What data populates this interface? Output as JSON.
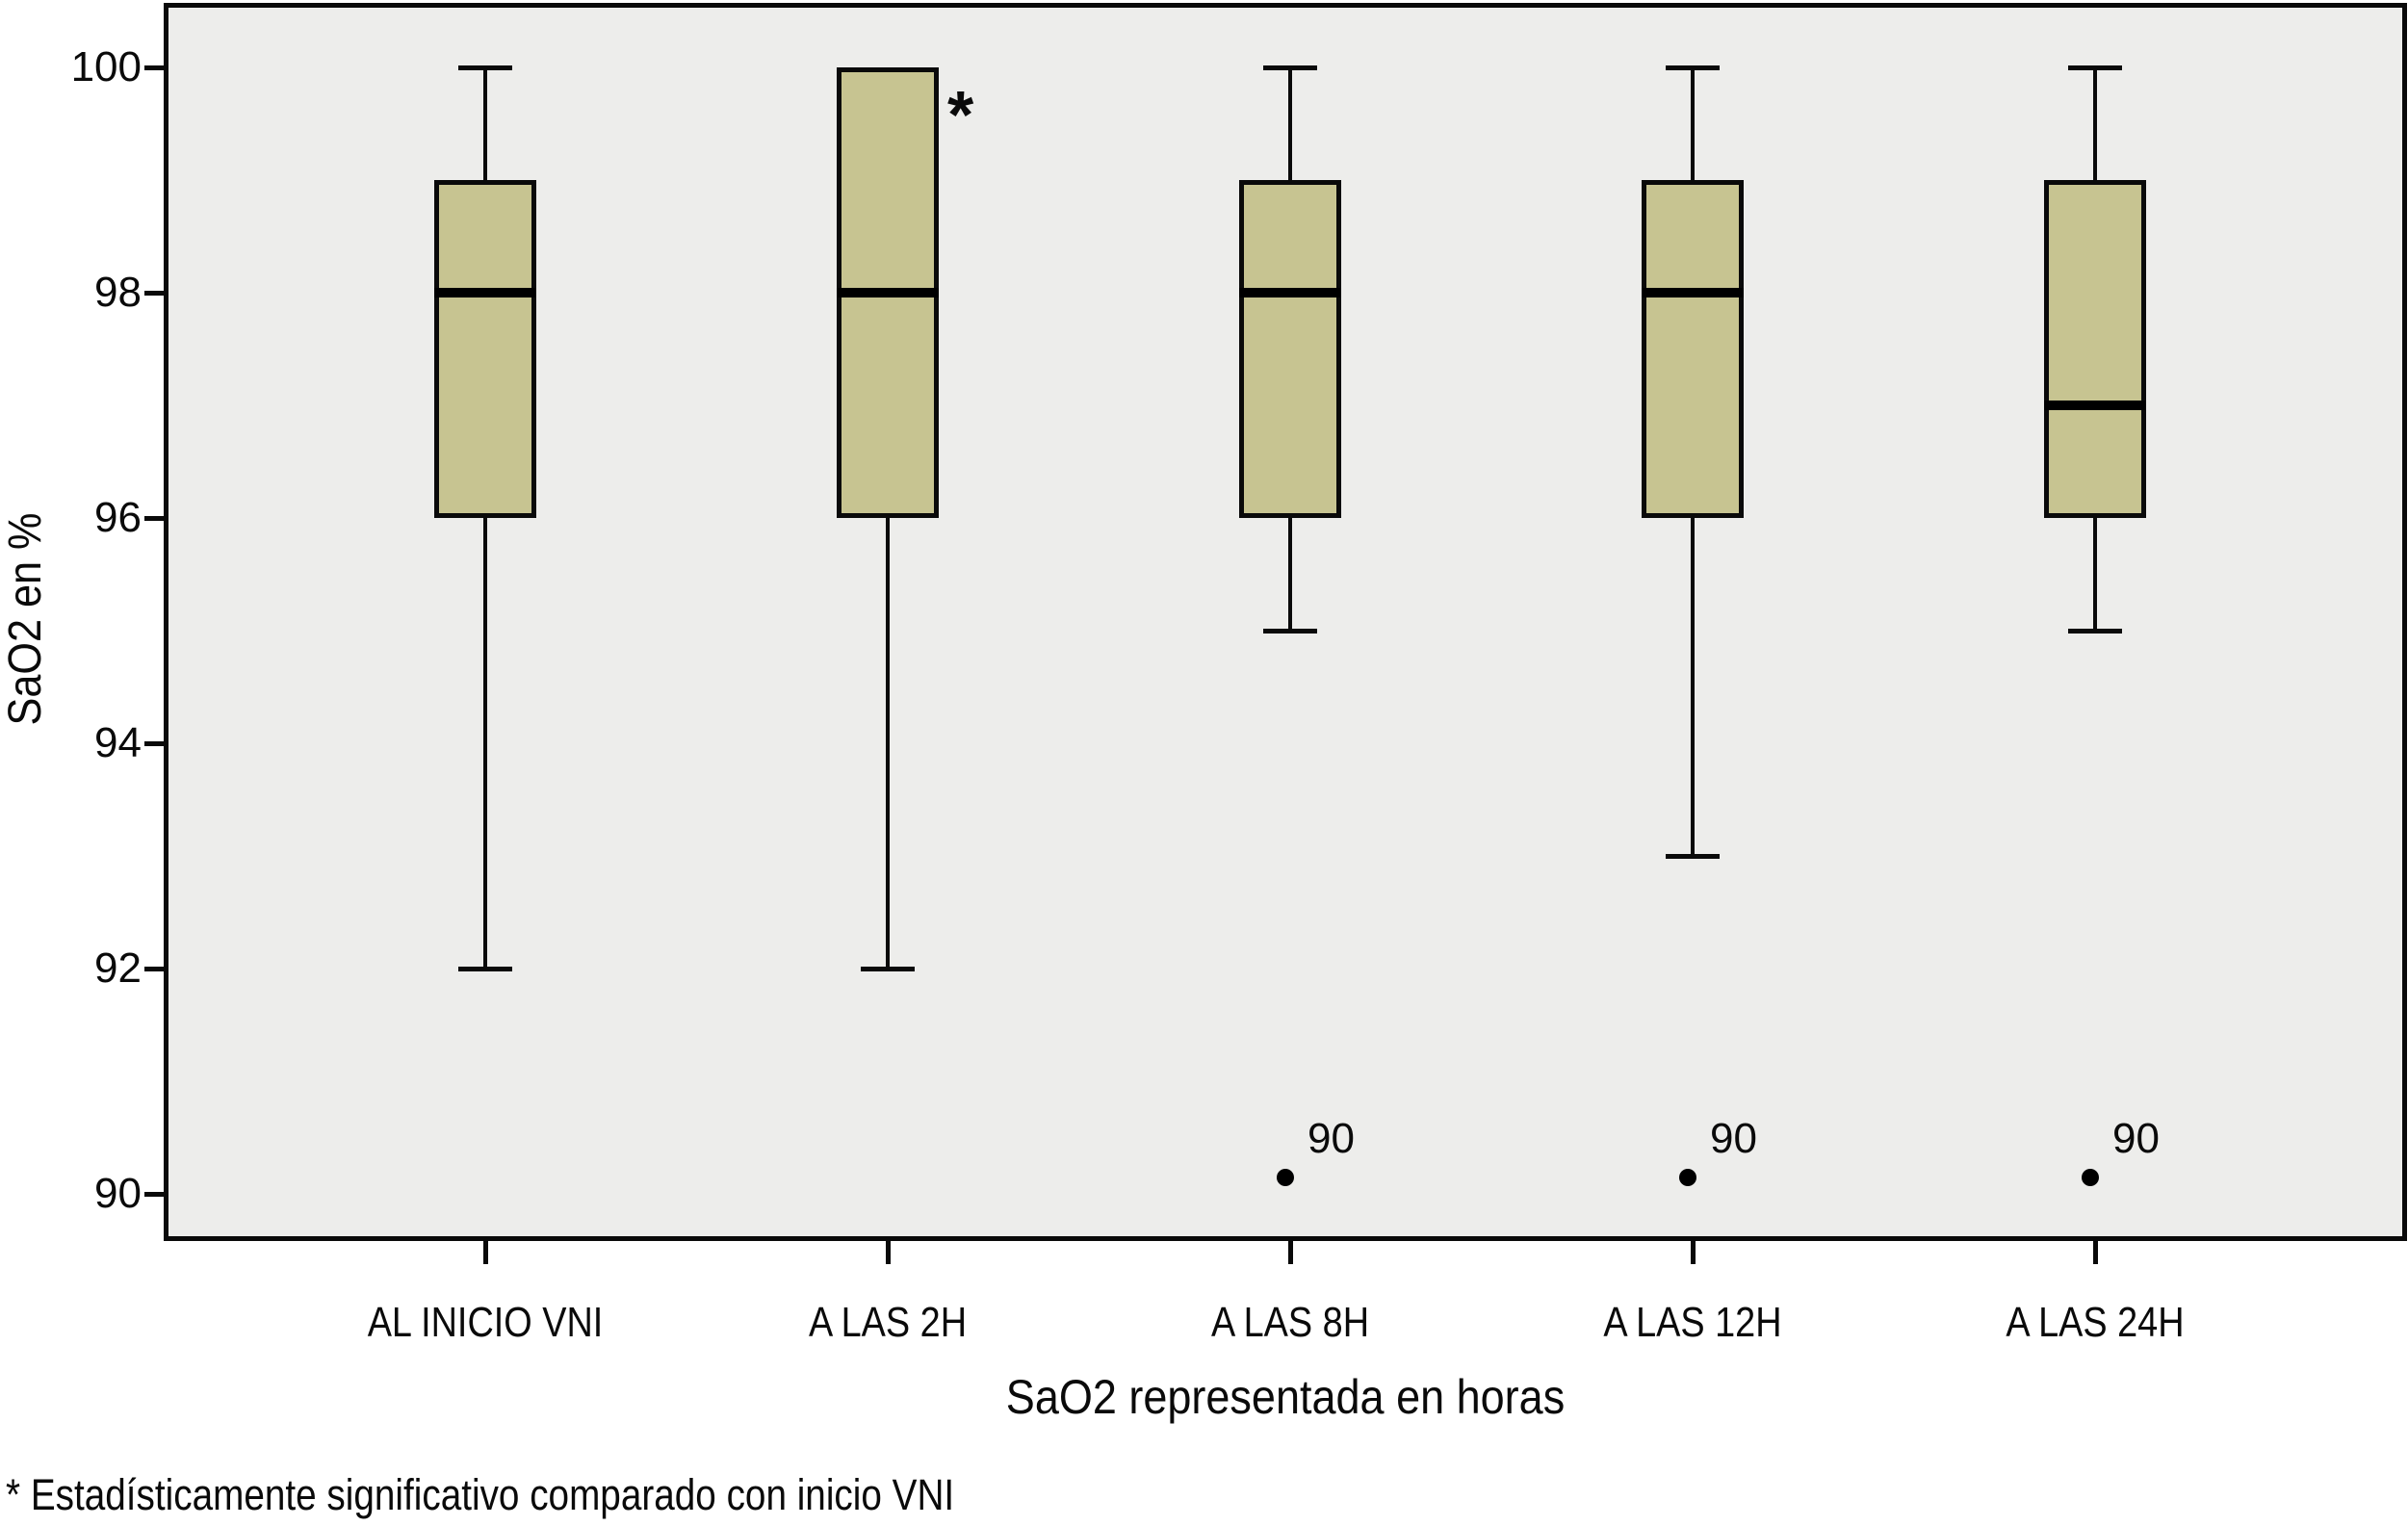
{
  "chart_data": {
    "type": "boxplot",
    "title": "",
    "ylabel": "SaO2 en %",
    "xlabel": "SaO2 representada en horas",
    "footnote": "* Estadísticamente significativo comparado con inicio VNI",
    "y_axis": {
      "ticks": [
        100,
        98,
        96,
        94,
        92,
        90
      ],
      "min": 89.3,
      "max": 100.6
    },
    "categories": [
      "AL INICIO VNI",
      "A LAS 2H",
      "A LAS 8H",
      "A LAS 12H",
      "A LAS 24H"
    ],
    "series": [
      {
        "category": "AL INICIO VNI",
        "whisker_low": 92,
        "q1": 96,
        "median": 98,
        "q3": 99,
        "whisker_high": 100,
        "outliers": []
      },
      {
        "category": "A LAS 2H",
        "whisker_low": 92,
        "q1": 96,
        "median": 98,
        "q3": 100,
        "whisker_high": null,
        "outliers": [],
        "annotation": "*"
      },
      {
        "category": "A LAS 8H",
        "whisker_low": 95,
        "q1": 96,
        "median": 98,
        "q3": 99,
        "whisker_high": 100,
        "outliers": [
          {
            "value": 90,
            "label": "90"
          }
        ]
      },
      {
        "category": "A LAS 12H",
        "whisker_low": 93,
        "q1": 96,
        "median": 98,
        "q3": 99,
        "whisker_high": 100,
        "outliers": [
          {
            "value": 90,
            "label": "90"
          }
        ]
      },
      {
        "category": "A LAS 24H",
        "whisker_low": 95,
        "q1": 96,
        "median": 97,
        "q3": 99,
        "whisker_high": 100,
        "outliers": [
          {
            "value": 90,
            "label": "90"
          }
        ]
      }
    ],
    "legend": null,
    "grid": false,
    "colors": {
      "box_fill": "#c7c491",
      "line": "#0a0a0a",
      "plot_bg": "#ededeb",
      "page_bg": "#ffffff"
    }
  }
}
